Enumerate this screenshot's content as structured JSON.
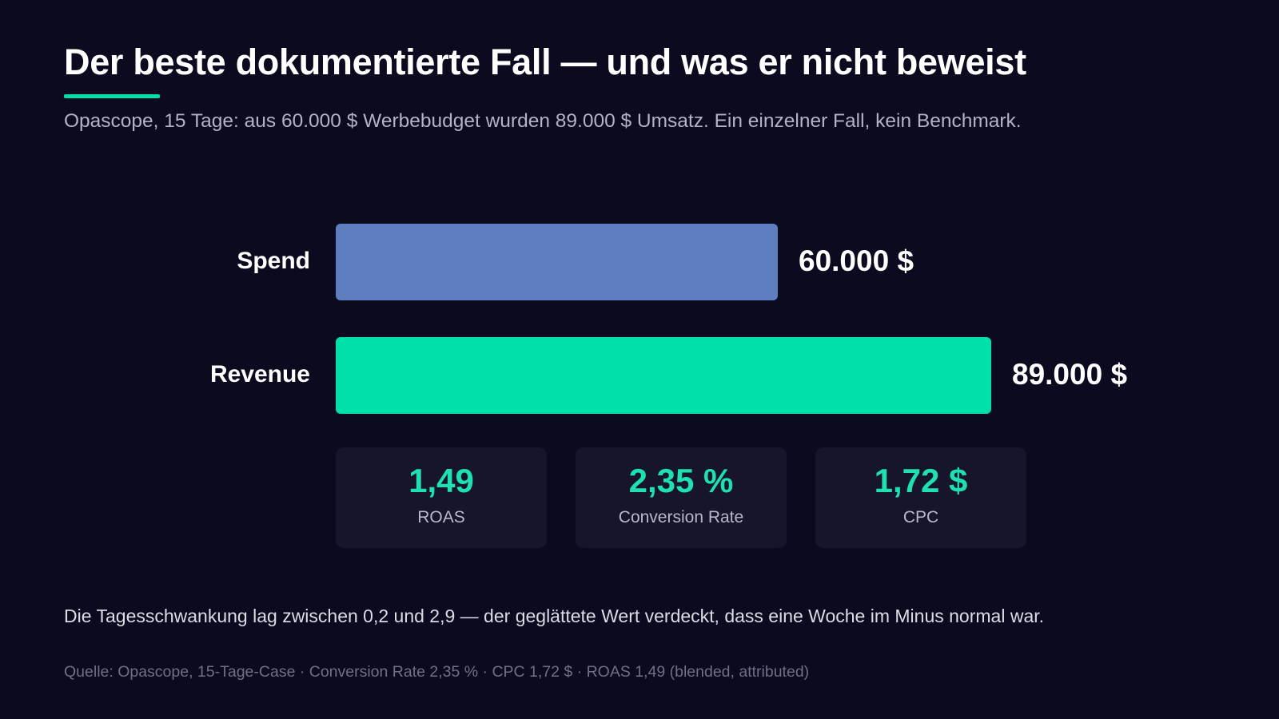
{
  "title": "Der beste dokumentierte Fall — und was er nicht beweist",
  "subtitle": "Opascope, 15 Tage: aus 60.000 $ Werbebudget wurden 89.000 $ Umsatz. Ein einzelner Fall, kein Benchmark.",
  "colors": {
    "background": "#0b0a1f",
    "accent": "#00e0aa",
    "spend_bar": "#5e7ebf",
    "revenue_bar": "#00e0aa"
  },
  "chart_data": {
    "type": "bar",
    "orientation": "horizontal",
    "title": "",
    "xlabel": "",
    "ylabel": "",
    "grid": false,
    "categories": [
      "Spend",
      "Revenue"
    ],
    "values": [
      60000,
      89000
    ],
    "value_labels": [
      "60.000 $",
      "89.000 $"
    ],
    "bar_colors": [
      "#5e7ebf",
      "#00e0aa"
    ],
    "xlim": [
      0,
      89000
    ]
  },
  "kpis": [
    {
      "value": "1,49",
      "label": "ROAS"
    },
    {
      "value": "2,35 %",
      "label": "Conversion Rate"
    },
    {
      "value": "1,72 $",
      "label": "CPC"
    }
  ],
  "note": "Die Tagesschwankung lag zwischen 0,2 und 2,9 — der geglättete Wert verdeckt, dass eine Woche im Minus normal war.",
  "source": "Quelle: Opascope, 15-Tage-Case · Conversion Rate 2,35 % · CPC 1,72 $ · ROAS 1,49 (blended, attributed)"
}
